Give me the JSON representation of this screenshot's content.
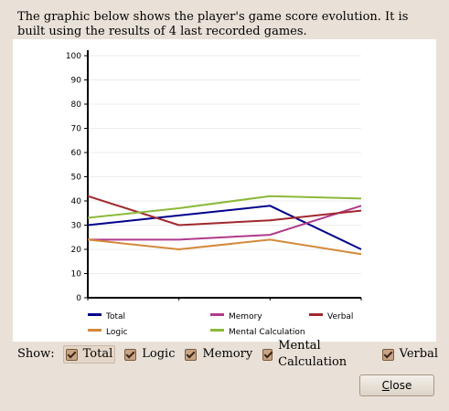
{
  "intro_text": "The graphic below shows the player's game score evolution. It is built using the results of 4 last recorded games.",
  "show_label": "Show:",
  "checkboxes": [
    {
      "label": "Total",
      "checked": true,
      "highlighted": true
    },
    {
      "label": "Logic",
      "checked": true,
      "highlighted": false
    },
    {
      "label": "Memory",
      "checked": true,
      "highlighted": false
    },
    {
      "label": "Mental Calculation",
      "checked": true,
      "highlighted": false
    },
    {
      "label": "Verbal",
      "checked": true,
      "highlighted": false
    }
  ],
  "close_button": {
    "label_mnemonic": "C",
    "label_rest": "lose"
  },
  "chart_data": {
    "type": "line",
    "title": "",
    "xlabel": "",
    "ylabel": "",
    "ylim": [
      0,
      100
    ],
    "yticks": [
      0,
      10,
      20,
      30,
      40,
      50,
      60,
      70,
      80,
      90,
      100
    ],
    "x": [
      1,
      2,
      3,
      4
    ],
    "grid": true,
    "legend_position": "bottom",
    "series": [
      {
        "name": "Total",
        "color": "#00008b",
        "values": [
          30,
          34,
          38,
          20
        ]
      },
      {
        "name": "Memory",
        "color": "#b03a8c",
        "values": [
          24,
          24,
          26,
          38
        ]
      },
      {
        "name": "Verbal",
        "color": "#a0282e",
        "values": [
          42,
          30,
          32,
          36
        ]
      },
      {
        "name": "Logic",
        "color": "#d4893a",
        "values": [
          24,
          20,
          24,
          18
        ]
      },
      {
        "name": "Mental Calculation",
        "color": "#8cb83a",
        "values": [
          33,
          37,
          42,
          41
        ]
      }
    ]
  }
}
